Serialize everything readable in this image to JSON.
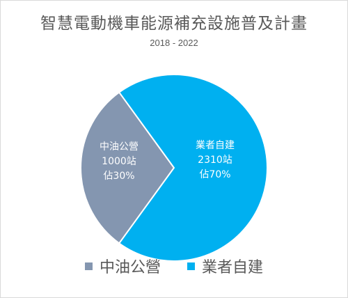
{
  "chart_data": {
    "type": "pie",
    "title": "智慧電動機車能源補充設施普及計畫",
    "subtitle": "2018 - 2022",
    "slices": [
      {
        "name": "中油公營",
        "value": 1000,
        "unit_label": "1000站",
        "pct_label": "佔30%",
        "percent": 30,
        "color": "#8496b0"
      },
      {
        "name": "業者自建",
        "value": 2310,
        "unit_label": "2310站",
        "pct_label": "佔70%",
        "percent": 70,
        "color": "#00b0f0"
      }
    ],
    "legend_position": "bottom"
  }
}
